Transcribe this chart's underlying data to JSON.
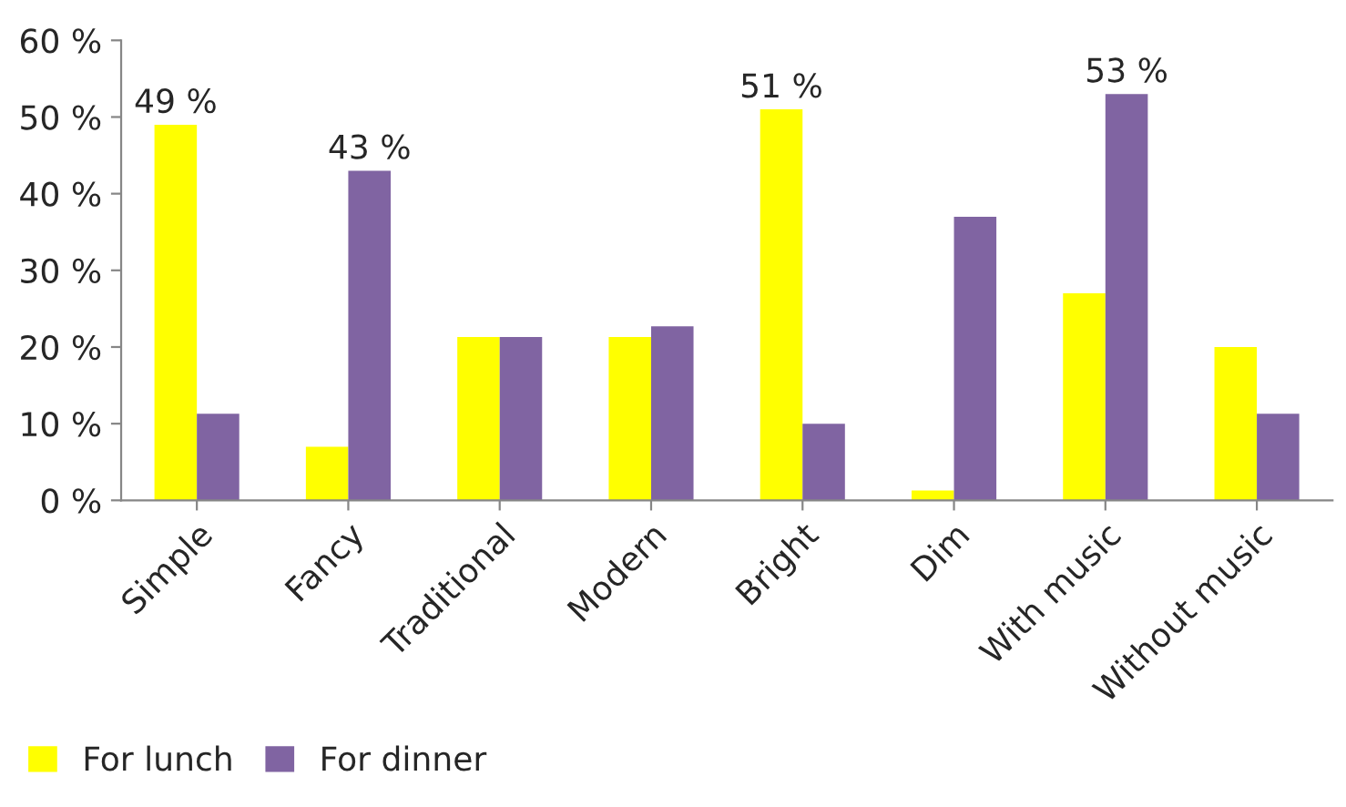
{
  "chart_data": {
    "type": "bar",
    "categories": [
      "Simple",
      "Fancy",
      "Traditional",
      "Modern",
      "Bright",
      "Dim",
      "With music",
      "Without music"
    ],
    "series": [
      {
        "name": "For lunch",
        "color": "#ffff00",
        "values": [
          49,
          7,
          21.3,
          21.3,
          51,
          1.3,
          27,
          20
        ],
        "value_labels": [
          "49 %",
          null,
          null,
          null,
          "51 %",
          null,
          null,
          null
        ]
      },
      {
        "name": "For dinner",
        "color": "#8064a2",
        "values": [
          11.3,
          43,
          21.3,
          22.7,
          10,
          37,
          53,
          11.3
        ],
        "value_labels": [
          null,
          "43 %",
          null,
          null,
          null,
          null,
          "53 %",
          null
        ]
      }
    ],
    "ylim": [
      0,
      60
    ],
    "yticks": [
      {
        "value": 0,
        "label": "0 %"
      },
      {
        "value": 10,
        "label": "10 %"
      },
      {
        "value": 20,
        "label": "20 %"
      },
      {
        "value": 30,
        "label": "30 %"
      },
      {
        "value": 40,
        "label": "40 %"
      },
      {
        "value": 50,
        "label": "50 %"
      },
      {
        "value": 60,
        "label": "60 %"
      }
    ],
    "grid": false,
    "legend": "bottom"
  }
}
